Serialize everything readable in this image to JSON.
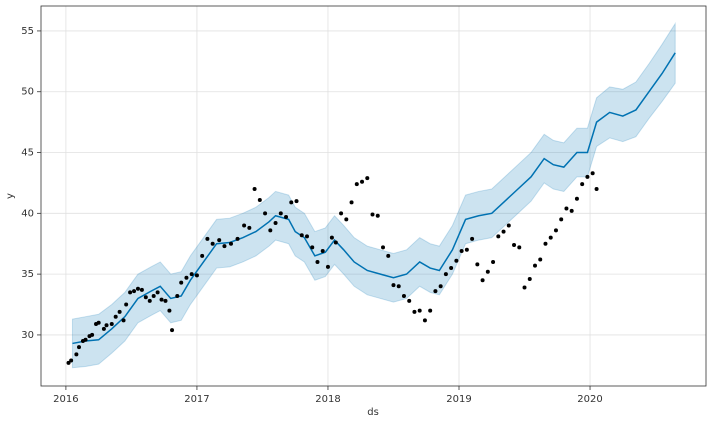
{
  "chart_data": {
    "type": "forecast",
    "x_label": "ds",
    "y_label": "y",
    "xlim": [
      2015.81,
      2020.885
    ],
    "ylim": [
      25.8,
      57.05
    ],
    "xticks": [
      2016,
      2017,
      2018,
      2019,
      2020
    ],
    "yticks": [
      30,
      35,
      40,
      45,
      50,
      55
    ],
    "grid": true,
    "observed": {
      "color": "#000000",
      "x": [
        2016.02,
        2016.04,
        2016.08,
        2016.1,
        2016.13,
        2016.15,
        2016.18,
        2016.2,
        2016.23,
        2016.25,
        2016.29,
        2016.31,
        2016.35,
        2016.38,
        2016.41,
        2016.44,
        2016.46,
        2016.49,
        2016.52,
        2016.55,
        2016.58,
        2016.61,
        2016.64,
        2016.67,
        2016.7,
        2016.73,
        2016.76,
        2016.79,
        2016.81,
        2016.85,
        2016.88,
        2016.92,
        2016.96,
        2017.0,
        2017.04,
        2017.08,
        2017.12,
        2017.17,
        2017.21,
        2017.26,
        2017.31,
        2017.36,
        2017.4,
        2017.44,
        2017.48,
        2017.52,
        2017.56,
        2017.6,
        2017.64,
        2017.68,
        2017.72,
        2017.76,
        2017.8,
        2017.84,
        2017.88,
        2017.92,
        2017.96,
        2018.0,
        2018.03,
        2018.06,
        2018.1,
        2018.14,
        2018.18,
        2018.22,
        2018.26,
        2018.3,
        2018.34,
        2018.38,
        2018.42,
        2018.46,
        2018.5,
        2018.54,
        2018.58,
        2018.62,
        2018.66,
        2018.7,
        2018.74,
        2018.78,
        2018.82,
        2018.86,
        2018.9,
        2018.94,
        2018.98,
        2019.02,
        2019.06,
        2019.1,
        2019.14,
        2019.18,
        2019.22,
        2019.26,
        2019.3,
        2019.34,
        2019.38,
        2019.42,
        2019.46,
        2019.5,
        2019.54,
        2019.58,
        2019.62,
        2019.66,
        2019.7,
        2019.74,
        2019.78,
        2019.82,
        2019.86,
        2019.9,
        2019.94,
        2019.98,
        2020.02,
        2020.05
      ],
      "values": [
        27.7,
        27.9,
        28.4,
        29.0,
        29.5,
        29.6,
        29.9,
        30.0,
        30.9,
        31.0,
        30.5,
        30.8,
        30.9,
        31.5,
        31.9,
        31.2,
        32.5,
        33.5,
        33.6,
        33.8,
        33.7,
        33.1,
        32.8,
        33.2,
        33.5,
        32.9,
        32.8,
        32.0,
        30.4,
        33.2,
        34.3,
        34.7,
        35.0,
        34.9,
        36.5,
        37.9,
        37.5,
        37.8,
        37.3,
        37.5,
        37.9,
        39.0,
        38.8,
        42.0,
        41.1,
        40.0,
        38.6,
        39.2,
        40.0,
        39.7,
        40.9,
        41.0,
        38.2,
        38.1,
        37.2,
        36.0,
        36.9,
        35.6,
        38.0,
        37.6,
        40.0,
        39.5,
        40.9,
        42.4,
        42.6,
        42.9,
        39.9,
        39.8,
        37.2,
        36.5,
        34.1,
        34.0,
        33.2,
        32.8,
        31.9,
        32.0,
        31.2,
        32.0,
        33.6,
        34.0,
        35.0,
        35.5,
        36.1,
        36.9,
        37.0,
        37.9,
        35.8,
        34.5,
        35.2,
        36.0,
        38.1,
        38.5,
        39.0,
        37.4,
        37.2,
        33.9,
        34.6,
        35.7,
        36.2,
        37.5,
        38.0,
        38.6,
        39.5,
        40.4,
        40.2,
        41.2,
        42.4,
        43.0,
        43.3,
        42.0
      ]
    },
    "forecast": {
      "color": "#0072B2",
      "x": [
        2016.05,
        2016.15,
        2016.25,
        2016.35,
        2016.45,
        2016.55,
        2016.65,
        2016.72,
        2016.8,
        2016.88,
        2016.95,
        2017.05,
        2017.15,
        2017.25,
        2017.35,
        2017.45,
        2017.55,
        2017.6,
        2017.7,
        2017.75,
        2017.82,
        2017.9,
        2017.98,
        2018.05,
        2018.12,
        2018.2,
        2018.3,
        2018.4,
        2018.5,
        2018.6,
        2018.7,
        2018.78,
        2018.85,
        2018.95,
        2019.05,
        2019.15,
        2019.25,
        2019.35,
        2019.45,
        2019.55,
        2019.65,
        2019.72,
        2019.8,
        2019.9,
        2019.98,
        2020.05,
        2020.15,
        2020.25,
        2020.35,
        2020.45,
        2020.55,
        2020.65
      ],
      "values": [
        29.3,
        29.5,
        29.6,
        30.5,
        31.5,
        33.0,
        33.6,
        34.0,
        33.0,
        33.2,
        34.5,
        36.0,
        37.5,
        37.6,
        38.0,
        38.5,
        39.3,
        39.8,
        39.5,
        38.5,
        38.0,
        36.5,
        36.8,
        37.8,
        37.0,
        36.0,
        35.3,
        35.0,
        34.7,
        35.0,
        36.0,
        35.5,
        35.3,
        37.0,
        39.5,
        39.8,
        40.0,
        41.0,
        42.0,
        43.0,
        44.5,
        44.0,
        43.8,
        45.0,
        45.0,
        47.5,
        48.3,
        48.0,
        48.5,
        50.0,
        51.5,
        53.2
      ],
      "lower": [
        27.3,
        27.4,
        27.6,
        28.5,
        29.5,
        31.0,
        31.6,
        32.0,
        31.0,
        31.2,
        32.5,
        34.0,
        35.5,
        35.6,
        36.0,
        36.5,
        37.3,
        37.8,
        37.5,
        36.5,
        36.0,
        34.5,
        34.8,
        35.8,
        35.0,
        34.0,
        33.3,
        33.0,
        32.7,
        33.0,
        34.0,
        33.5,
        33.3,
        35.0,
        37.5,
        37.8,
        38.0,
        39.0,
        40.0,
        41.0,
        42.5,
        42.0,
        41.8,
        43.0,
        43.0,
        45.5,
        46.2,
        45.9,
        46.3,
        47.8,
        49.2,
        50.7
      ],
      "upper": [
        31.3,
        31.5,
        31.7,
        32.5,
        33.5,
        35.0,
        35.6,
        36.0,
        35.0,
        35.2,
        36.5,
        38.0,
        39.5,
        39.6,
        40.0,
        40.5,
        41.3,
        41.8,
        41.5,
        40.5,
        40.0,
        38.5,
        38.8,
        39.8,
        39.0,
        38.0,
        37.3,
        37.0,
        36.7,
        37.0,
        38.0,
        37.5,
        37.3,
        39.0,
        41.5,
        41.8,
        42.0,
        43.0,
        44.0,
        45.0,
        46.5,
        46.0,
        45.8,
        47.0,
        47.0,
        49.5,
        50.4,
        50.2,
        50.8,
        52.3,
        53.9,
        55.6
      ]
    }
  }
}
